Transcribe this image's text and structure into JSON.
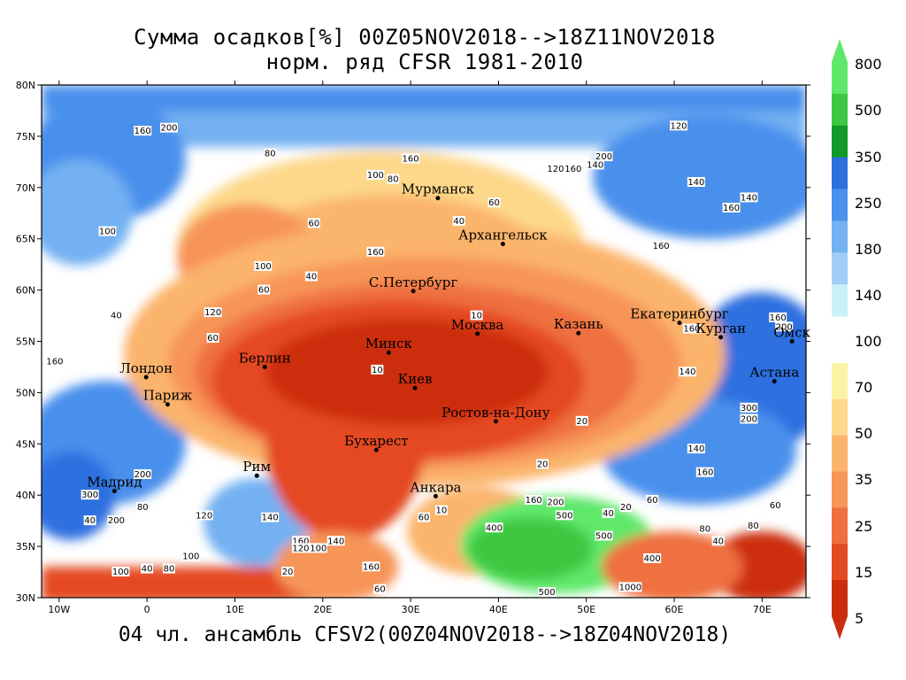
{
  "header": {
    "title_line1": "Сумма осадков[%] 00Z05NOV2018-->18Z11NOV2018",
    "title_line2": "норм. ряд CFSR 1981-2010"
  },
  "footer": {
    "text": "04 чл. ансамбль CFSV2(00Z04NOV2018-->18Z04NOV2018)"
  },
  "axes": {
    "lon_labels": [
      "10W",
      "0",
      "10E",
      "20E",
      "30E",
      "40E",
      "50E",
      "60E",
      "70E"
    ],
    "lat_labels": [
      "80N",
      "75N",
      "70N",
      "65N",
      "60N",
      "55N",
      "50N",
      "45N",
      "40N",
      "35N",
      "30N"
    ],
    "lon_range": [
      -12,
      75
    ],
    "lat_range": [
      30,
      80
    ]
  },
  "colorbar": {
    "labels": [
      "800",
      "500",
      "350",
      "250",
      "180",
      "140",
      "100",
      "70",
      "50",
      "35",
      "25",
      "15",
      "5"
    ],
    "upper_colors": [
      "#5ee86a",
      "#3cc840",
      "#119a28",
      "#2e6fe0",
      "#4a90ec",
      "#73b1f2",
      "#a0cef6",
      "#c9f1f8"
    ],
    "lower_colors": [
      "#fbf3a4",
      "#fdd88b",
      "#fbb46c",
      "#f79458",
      "#ef6f3f",
      "#e44a22",
      "#cc2e0d"
    ]
  },
  "cities": [
    {
      "name": "Мурманск",
      "lon": 33.1,
      "lat": 68.97
    },
    {
      "name": "Архангельск",
      "lon": 40.5,
      "lat": 64.5
    },
    {
      "name": "С.Петербург",
      "lon": 30.3,
      "lat": 59.9
    },
    {
      "name": "Москва",
      "lon": 37.6,
      "lat": 55.75
    },
    {
      "name": "Казань",
      "lon": 49.1,
      "lat": 55.8
    },
    {
      "name": "Екатеринбург",
      "lon": 60.6,
      "lat": 56.8
    },
    {
      "name": "Курган",
      "lon": 65.3,
      "lat": 55.4
    },
    {
      "name": "Омск",
      "lon": 73.4,
      "lat": 55.0
    },
    {
      "name": "Астана",
      "lon": 71.4,
      "lat": 51.1
    },
    {
      "name": "Минск",
      "lon": 27.5,
      "lat": 53.9
    },
    {
      "name": "Берлин",
      "lon": 13.4,
      "lat": 52.5
    },
    {
      "name": "Киев",
      "lon": 30.5,
      "lat": 50.45
    },
    {
      "name": "Лондон",
      "lon": -0.1,
      "lat": 51.5
    },
    {
      "name": "Париж",
      "lon": 2.35,
      "lat": 48.85
    },
    {
      "name": "Ростов-на-Дону",
      "lon": 39.7,
      "lat": 47.2
    },
    {
      "name": "Бухарест",
      "lon": 26.1,
      "lat": 44.4
    },
    {
      "name": "Рим",
      "lon": 12.5,
      "lat": 41.9
    },
    {
      "name": "Мадрид",
      "lon": -3.7,
      "lat": 40.4
    },
    {
      "name": "Анкара",
      "lon": 32.85,
      "lat": 39.9
    }
  ],
  "contour_labels": [
    {
      "t": "200",
      "lon": 2.5,
      "lat": 75.8
    },
    {
      "t": "160",
      "lon": -0.5,
      "lat": 75.5
    },
    {
      "t": "80",
      "lon": 14,
      "lat": 73.3
    },
    {
      "t": "100",
      "lon": 26,
      "lat": 71.2
    },
    {
      "t": "80",
      "lon": 28,
      "lat": 70.8
    },
    {
      "t": "160",
      "lon": 30,
      "lat": 72.8
    },
    {
      "t": "100",
      "lon": -4.5,
      "lat": 65.7
    },
    {
      "t": "60",
      "lon": 19,
      "lat": 66.5
    },
    {
      "t": "160",
      "lon": 26,
      "lat": 63.7
    },
    {
      "t": "40",
      "lon": 35.5,
      "lat": 66.7
    },
    {
      "t": "60",
      "lon": 39.5,
      "lat": 68.5
    },
    {
      "t": "100",
      "lon": 13.2,
      "lat": 62.3
    },
    {
      "t": "40",
      "lon": 18.7,
      "lat": 61.3
    },
    {
      "t": "60",
      "lon": 13.3,
      "lat": 60.0
    },
    {
      "t": "10",
      "lon": 37.5,
      "lat": 57.5
    },
    {
      "t": "10",
      "lon": 26.2,
      "lat": 52.2
    },
    {
      "t": "60",
      "lon": 7.5,
      "lat": 55.3
    },
    {
      "t": "120",
      "lon": 7.5,
      "lat": 57.8
    },
    {
      "t": "160",
      "lon": -10.5,
      "lat": 53.0
    },
    {
      "t": "40",
      "lon": -3.5,
      "lat": 57.5
    },
    {
      "t": "120",
      "lon": 46.5,
      "lat": 71.8
    },
    {
      "t": "160",
      "lon": 48.5,
      "lat": 71.8
    },
    {
      "t": "140",
      "lon": 51,
      "lat": 72.2
    },
    {
      "t": "200",
      "lon": 52,
      "lat": 73.0
    },
    {
      "t": "120",
      "lon": 60.5,
      "lat": 76.0
    },
    {
      "t": "140",
      "lon": 62.5,
      "lat": 70.5
    },
    {
      "t": "160",
      "lon": 66.5,
      "lat": 68.0
    },
    {
      "t": "140",
      "lon": 68.5,
      "lat": 69.0
    },
    {
      "t": "160",
      "lon": 58.5,
      "lat": 64.3
    },
    {
      "t": "160",
      "lon": 62,
      "lat": 56.2
    },
    {
      "t": "140",
      "lon": 61.5,
      "lat": 52.0
    },
    {
      "t": "160",
      "lon": 71.8,
      "lat": 57.3
    },
    {
      "t": "200",
      "lon": 72.5,
      "lat": 56.4
    },
    {
      "t": "300",
      "lon": 68.5,
      "lat": 48.5
    },
    {
      "t": "200",
      "lon": 68.5,
      "lat": 47.4
    },
    {
      "t": "140",
      "lon": 62.5,
      "lat": 44.5
    },
    {
      "t": "160",
      "lon": 63.5,
      "lat": 42.2
    },
    {
      "t": "20",
      "lon": 49.5,
      "lat": 47.2
    },
    {
      "t": "20",
      "lon": 45,
      "lat": 43.0
    },
    {
      "t": "300",
      "lon": -6.5,
      "lat": 40.0
    },
    {
      "t": "200",
      "lon": -3.5,
      "lat": 37.5
    },
    {
      "t": "200",
      "lon": -0.5,
      "lat": 42.0
    },
    {
      "t": "120",
      "lon": 6.5,
      "lat": 38.0
    },
    {
      "t": "140",
      "lon": 14,
      "lat": 37.8
    },
    {
      "t": "160",
      "lon": 17.5,
      "lat": 35.5
    },
    {
      "t": "120",
      "lon": 17.5,
      "lat": 34.8
    },
    {
      "t": "100",
      "lon": 19.5,
      "lat": 34.8
    },
    {
      "t": "140",
      "lon": 21.5,
      "lat": 35.5
    },
    {
      "t": "160",
      "lon": 25.5,
      "lat": 33.0
    },
    {
      "t": "60",
      "lon": 31.5,
      "lat": 37.8
    },
    {
      "t": "10",
      "lon": 33.5,
      "lat": 38.5
    },
    {
      "t": "400",
      "lon": 39.5,
      "lat": 36.8
    },
    {
      "t": "160",
      "lon": 44,
      "lat": 39.5
    },
    {
      "t": "200",
      "lon": 46.5,
      "lat": 39.3
    },
    {
      "t": "500",
      "lon": 47.5,
      "lat": 38.0
    },
    {
      "t": "500",
      "lon": 52,
      "lat": 36.0
    },
    {
      "t": "400",
      "lon": 57.5,
      "lat": 33.8
    },
    {
      "t": "1000",
      "lon": 55,
      "lat": 31.0
    },
    {
      "t": "40",
      "lon": 52.5,
      "lat": 38.2
    },
    {
      "t": "20",
      "lon": 54.5,
      "lat": 38.8
    },
    {
      "t": "60",
      "lon": 57.5,
      "lat": 39.5
    },
    {
      "t": "80",
      "lon": 63.5,
      "lat": 36.7
    },
    {
      "t": "40",
      "lon": 65,
      "lat": 35.5
    },
    {
      "t": "60",
      "lon": 71.5,
      "lat": 39.0
    },
    {
      "t": "80",
      "lon": 69,
      "lat": 37.0
    },
    {
      "t": "100",
      "lon": -3,
      "lat": 32.5
    },
    {
      "t": "40",
      "lon": 0,
      "lat": 32.8
    },
    {
      "t": "80",
      "lon": 2.5,
      "lat": 32.8
    },
    {
      "t": "20",
      "lon": 16,
      "lat": 32.5
    },
    {
      "t": "80",
      "lon": -0.5,
      "lat": 38.8
    },
    {
      "t": "40",
      "lon": -6.5,
      "lat": 37.5
    },
    {
      "t": "100",
      "lon": 5,
      "lat": 34.0
    },
    {
      "t": "500",
      "lon": 45.5,
      "lat": 30.5
    },
    {
      "t": "60",
      "lon": 26.5,
      "lat": 30.8
    }
  ]
}
